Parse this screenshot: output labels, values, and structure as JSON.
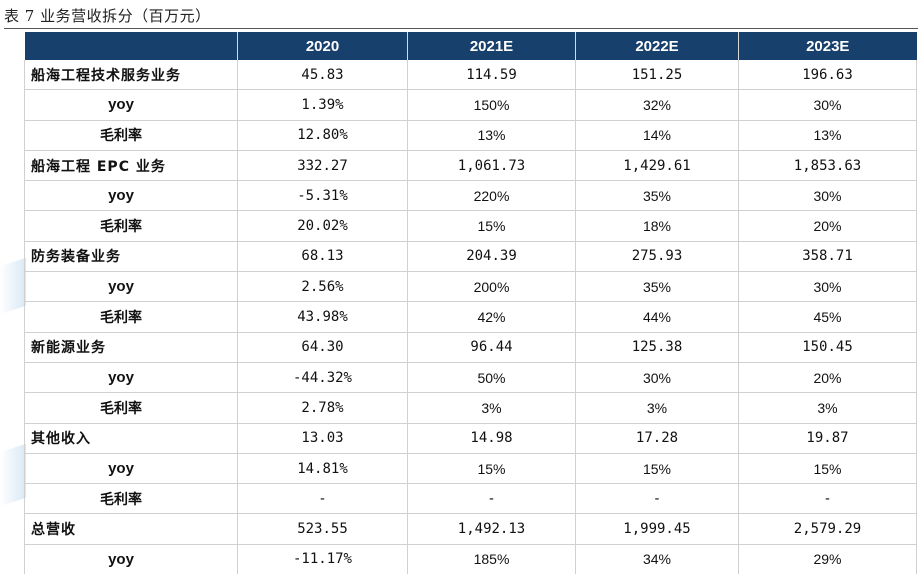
{
  "caption": "表 7 业务营收拆分（百万元）",
  "table": {
    "headers": [
      "",
      "2020",
      "2021E",
      "2022E",
      "2023E"
    ],
    "rows": [
      {
        "label": "船海工程技术服务业务",
        "type": "main",
        "values": [
          "45.83",
          "114.59",
          "151.25",
          "196.63"
        ]
      },
      {
        "label": "yoy",
        "type": "yoy",
        "values": [
          "1.39%",
          "150%",
          "32%",
          "30%"
        ]
      },
      {
        "label": "毛利率",
        "type": "sub",
        "values": [
          "12.80%",
          "13%",
          "14%",
          "13%"
        ]
      },
      {
        "label": "船海工程 EPC 业务",
        "type": "main",
        "values": [
          "332.27",
          "1,061.73",
          "1,429.61",
          "1,853.63"
        ]
      },
      {
        "label": "yoy",
        "type": "yoy",
        "values": [
          "-5.31%",
          "220%",
          "35%",
          "30%"
        ]
      },
      {
        "label": "毛利率",
        "type": "sub",
        "values": [
          "20.02%",
          "15%",
          "18%",
          "20%"
        ]
      },
      {
        "label": "防务装备业务",
        "type": "main",
        "values": [
          "68.13",
          "204.39",
          "275.93",
          "358.71"
        ]
      },
      {
        "label": "yoy",
        "type": "yoy",
        "values": [
          "2.56%",
          "200%",
          "35%",
          "30%"
        ]
      },
      {
        "label": "毛利率",
        "type": "sub",
        "values": [
          "43.98%",
          "42%",
          "44%",
          "45%"
        ]
      },
      {
        "label": "新能源业务",
        "type": "main",
        "values": [
          "64.30",
          "96.44",
          "125.38",
          "150.45"
        ]
      },
      {
        "label": "yoy",
        "type": "yoy",
        "values": [
          "-44.32%",
          "50%",
          "30%",
          "20%"
        ]
      },
      {
        "label": "毛利率",
        "type": "sub",
        "values": [
          "2.78%",
          "3%",
          "3%",
          "3%"
        ]
      },
      {
        "label": "其他收入",
        "type": "main",
        "values": [
          "13.03",
          "14.98",
          "17.28",
          "19.87"
        ]
      },
      {
        "label": "yoy",
        "type": "yoy",
        "values": [
          "14.81%",
          "15%",
          "15%",
          "15%"
        ]
      },
      {
        "label": "毛利率",
        "type": "sub",
        "values": [
          "-",
          "-",
          "-",
          "-"
        ]
      },
      {
        "label": "总营收",
        "type": "main",
        "values": [
          "523.55",
          "1,492.13",
          "1,999.45",
          "2,579.29"
        ]
      },
      {
        "label": "yoy",
        "type": "yoy",
        "values": [
          "-11.17%",
          "185%",
          "34%",
          "29%"
        ]
      }
    ]
  }
}
